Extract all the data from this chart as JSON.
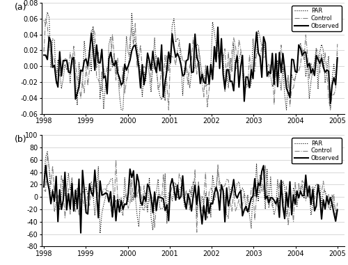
{
  "panel_a_ylim": [
    -0.06,
    0.08
  ],
  "panel_a_yticks": [
    -0.06,
    -0.04,
    -0.02,
    0.0,
    0.02,
    0.04,
    0.06,
    0.08
  ],
  "panel_b_ylim": [
    -80,
    100
  ],
  "panel_b_yticks": [
    -80,
    -60,
    -40,
    -20,
    0,
    20,
    40,
    60,
    80,
    100
  ],
  "xlim_start": 1997.95,
  "xlim_end": 2005.17,
  "xtick_labels": [
    "1998",
    "1999",
    "2000",
    "2001",
    "2002",
    "2003",
    "2004",
    "2005"
  ],
  "xtick_positions": [
    1998,
    1999,
    2000,
    2001,
    2002,
    2003,
    2004,
    2005
  ],
  "legend_labels": [
    "PAR",
    "Control",
    "Observed"
  ],
  "panel_labels": [
    "(a)",
    "(b)"
  ],
  "background_color": "#ffffff",
  "grid_color": "#c8c8c8"
}
